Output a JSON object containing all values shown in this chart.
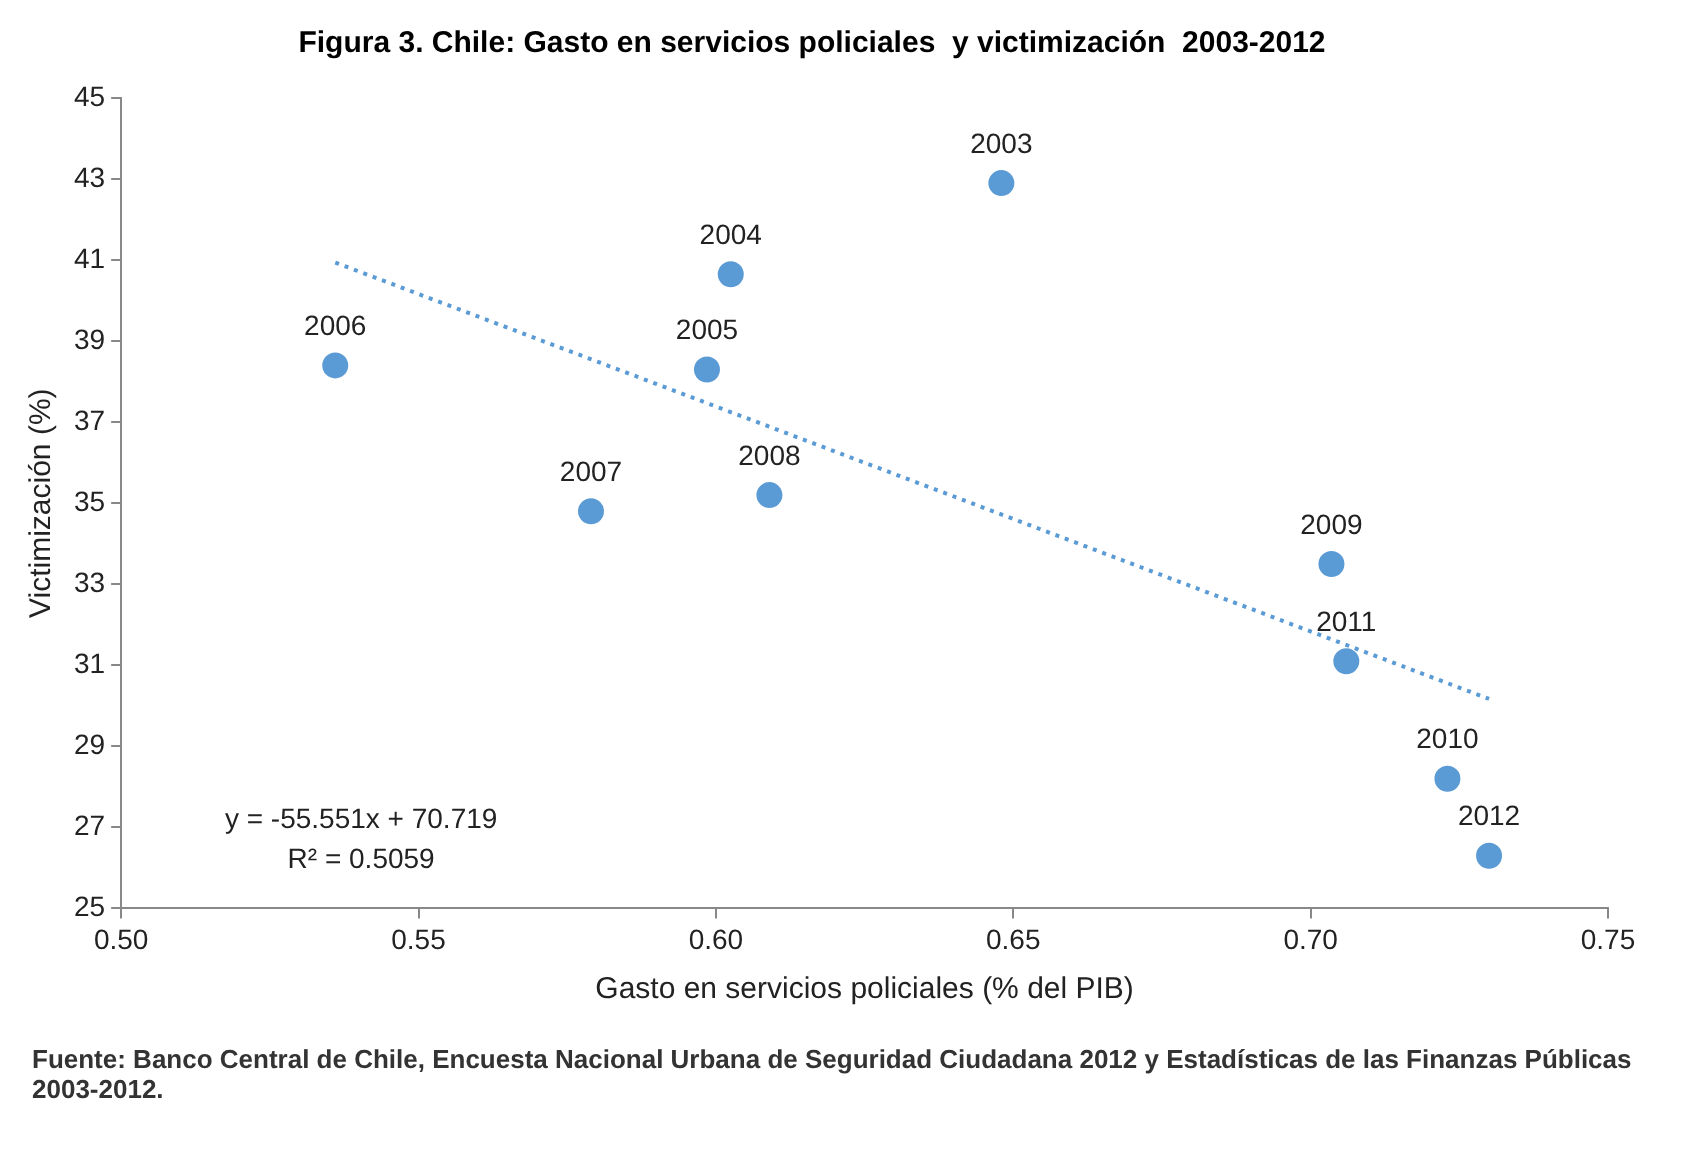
{
  "chart_data": {
    "type": "scatter",
    "title": "Figura 3. Chile: Gasto en servicios policiales  y victimización  2003-2012",
    "xlabel": "Gasto en servicios policiales (% del PIB)",
    "ylabel": "Victimización (%)",
    "series": [
      {
        "color": "#5b9bd5",
        "marker": "circle",
        "x": [
          0.648,
          0.6025,
          0.5985,
          0.536,
          0.579,
          0.609,
          0.7035,
          0.723,
          0.706,
          0.73
        ],
        "values": [
          42.9,
          40.65,
          38.3,
          38.4,
          34.8,
          35.2,
          33.5,
          28.2,
          31.1,
          26.3
        ]
      },
      {
        "type": "line",
        "color": "#5b9bd5",
        "marker": "none",
        "line_style": "dotted",
        "x": [
          0.536,
          0.73
        ],
        "values": [
          40.94,
          30.17
        ]
      }
    ],
    "xlim": [
      0.5,
      0.75
    ],
    "xticks": [
      {
        "value": 0.5,
        "label": "0.50"
      },
      {
        "value": 0.55,
        "label": "0.55"
      },
      {
        "value": 0.6,
        "label": "0.60"
      },
      {
        "value": 0.65,
        "label": "0.65"
      },
      {
        "value": 0.7,
        "label": "0.70"
      },
      {
        "value": 0.75,
        "label": "0.75"
      }
    ],
    "ylim": [
      25,
      45
    ],
    "yticks": [
      25,
      27,
      29,
      31,
      33,
      35,
      37,
      39,
      41,
      43,
      45
    ],
    "grid": false,
    "legend": false,
    "annotations": [
      {
        "text": "2003",
        "x": 0.648,
        "y": 42.9
      },
      {
        "text": "2004",
        "x": 0.6025,
        "y": 40.65
      },
      {
        "text": "2005",
        "x": 0.5985,
        "y": 38.3
      },
      {
        "text": "2006",
        "x": 0.536,
        "y": 38.4
      },
      {
        "text": "2007",
        "x": 0.579,
        "y": 34.8
      },
      {
        "text": "2008",
        "x": 0.609,
        "y": 35.2
      },
      {
        "text": "2009",
        "x": 0.7035,
        "y": 33.5
      },
      {
        "text": "2010",
        "x": 0.723,
        "y": 28.2
      },
      {
        "text": "2011",
        "x": 0.706,
        "y": 31.1
      },
      {
        "text": "2012",
        "x": 0.73,
        "y": 26.3
      },
      "y = -55.551x + 70.719",
      "R² = 0.5059",
      "Fuente: Banco Central de Chile, Encuesta Nacional Urbana de Seguridad Ciudadana 2012 y Estadísticas de las Finanzas Públicas 2003-2012."
    ]
  }
}
